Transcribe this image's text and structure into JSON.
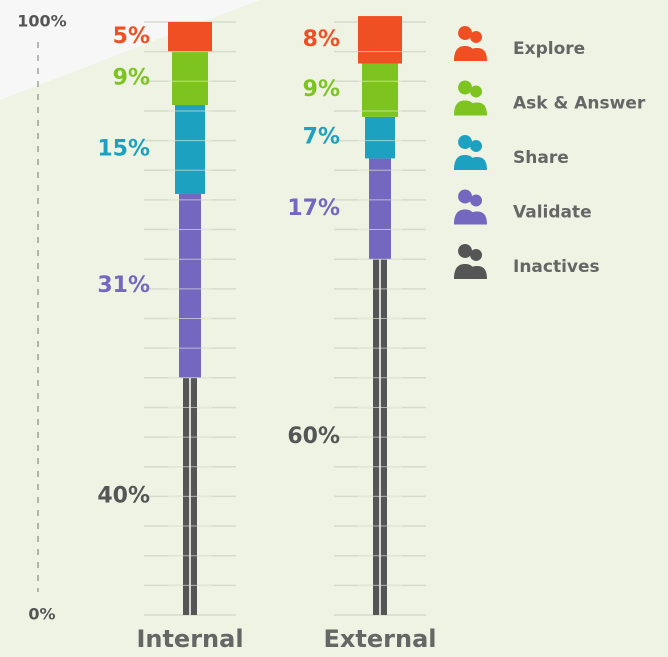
{
  "chart_data": {
    "type": "stacked-bar",
    "categories": [
      "Internal",
      "External"
    ],
    "series": [
      {
        "name": "Inactives",
        "color": "#555555",
        "values": [
          40,
          60
        ],
        "value_labels": [
          "40%",
          "60%"
        ]
      },
      {
        "name": "Validate",
        "color": "#7367c0",
        "values": [
          31,
          17
        ],
        "value_labels": [
          "31%",
          "17%"
        ]
      },
      {
        "name": "Share",
        "color": "#1da1c1",
        "values": [
          15,
          7
        ],
        "value_labels": [
          "15%",
          "7%"
        ]
      },
      {
        "name": "Ask & Answer",
        "color": "#7dc421",
        "values": [
          9,
          9
        ],
        "value_labels": [
          "9%",
          "9%"
        ]
      },
      {
        "name": "Explore",
        "color": "#f04e23",
        "values": [
          5,
          8
        ],
        "value_labels": [
          "5%",
          "8%"
        ]
      }
    ],
    "ylim": [
      0,
      100
    ],
    "yticks": [
      {
        "value": 0,
        "label": "0%"
      },
      {
        "value": 100,
        "label": "100%"
      }
    ]
  }
}
